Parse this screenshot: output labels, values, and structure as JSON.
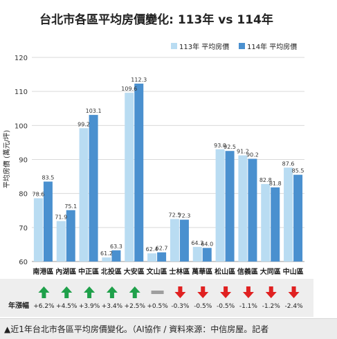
{
  "caption": "▲近1年台北市各區平均房價變化。（AI協作 / 資料來源：中信房屋。記者",
  "colors": {
    "bar_113": "#b9dcf2",
    "bar_114": "#4a90cf",
    "up": "#1fa04a",
    "flat": "#9e9e9e",
    "down": "#e02121",
    "grid": "#d9d9d9",
    "strip": "#eeeeee"
  },
  "chart_data": {
    "type": "bar",
    "title": "台北市各區平均房價變化: 113年 vs 114年",
    "ylabel": "平均房價 (萬元/坪)",
    "ylim": [
      60,
      120
    ],
    "yticks": [
      "60",
      "70",
      "80",
      "90",
      "100",
      "110",
      "120"
    ],
    "categories": [
      "南港區",
      "內湖區",
      "中正區",
      "北投區",
      "大安區",
      "文山區",
      "士林區",
      "萬華區",
      "松山區",
      "信義區",
      "大同區",
      "中山區"
    ],
    "series": [
      {
        "name": "113年 平均房價",
        "values": [
          78.6,
          71.9,
          99.2,
          61.2,
          109.6,
          62.4,
          72.5,
          64.3,
          93.0,
          91.2,
          82.8,
          87.6
        ]
      },
      {
        "name": "114年 平均房價",
        "values": [
          83.5,
          75.1,
          103.1,
          63.3,
          112.3,
          62.7,
          72.3,
          64.0,
          92.5,
          90.2,
          81.8,
          85.5
        ]
      }
    ],
    "value_labels_113": [
      "78.6",
      "71.9",
      "99.2",
      "61.2",
      "109.6",
      "62.4",
      "72.5",
      "64.3",
      "93.0",
      "91.2",
      "82.8",
      "87.6"
    ],
    "value_labels_114": [
      "83.5",
      "75.1",
      "103.1",
      "63.3",
      "112.3",
      "62.7",
      "72.3",
      "64.0",
      "92.5",
      "90.2",
      "81.8",
      "85.5"
    ],
    "change": {
      "label": "年漲幅",
      "values": [
        "+6.2%",
        "+4.5%",
        "+3.9%",
        "+3.4%",
        "+2.5%",
        "+0.5%",
        "-0.3%",
        "-0.5%",
        "-0.5%",
        "-1.1%",
        "-1.2%",
        "-2.4%"
      ],
      "trend": [
        "up",
        "up",
        "up",
        "up",
        "up",
        "flat",
        "down",
        "down",
        "down",
        "down",
        "down",
        "down"
      ]
    },
    "legend_placement": "top-right",
    "grid": true
  }
}
